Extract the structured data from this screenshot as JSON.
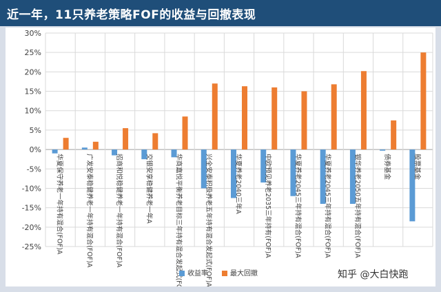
{
  "header": {
    "title": "近一年，11只养老策略FOF的收益与回撤表现"
  },
  "watermark": "知乎 @大白快跑",
  "colors": {
    "header_bg": "#1f4e79",
    "series_return": "#5b9bd5",
    "series_drawdown": "#ed7d31",
    "grid": "#d9d9d9"
  },
  "chart_data": {
    "type": "bar",
    "categories": [
      "华夏保守养老一年持有混合(FOF)A",
      "广发安泰稳健养老一年持有混合(FOF)A",
      "招商和悦稳健养老一年持有混合(FOF)A",
      "交银安享稳健养老一年A",
      "华商嘉悦平衡养老目标三年持有混合发起式(FOF)A",
      "兴全安泰积极养老五年持有混合发起式(FOF)A",
      "华夏养老2040三年A",
      "中欧预见养老2035三年持有(FOF)A",
      "华夏养老2045三年持有混合(FOF)A",
      "华夏养老2045三年持有混合(FOF)A",
      "银华养老2050五年持有混合(FOF)A",
      "债券基金",
      "股票基金"
    ],
    "series": [
      {
        "name": "收益率",
        "values": [
          -1.0,
          0.5,
          -1.5,
          -2.5,
          -2.0,
          -10.0,
          -12.5,
          -8.5,
          -12.0,
          -14.0,
          -14.0,
          -0.3,
          -18.5
        ]
      },
      {
        "name": "最大回撤",
        "values": [
          3.0,
          2.0,
          5.5,
          4.2,
          8.5,
          17.0,
          16.3,
          16.0,
          15.0,
          16.8,
          20.2,
          7.5,
          25.0
        ]
      }
    ],
    "ylim": [
      -25,
      30
    ],
    "yticks": [
      "-25%",
      "-20%",
      "-15%",
      "-10%",
      "-5%",
      "0%",
      "5%",
      "10%",
      "15%",
      "20%",
      "25%",
      "30%"
    ],
    "grid": true,
    "legend_position": "bottom-center"
  }
}
